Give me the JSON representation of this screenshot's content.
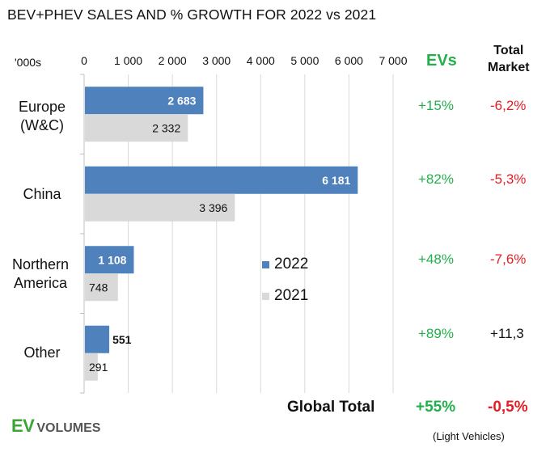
{
  "chart_data": {
    "type": "bar",
    "orientation": "horizontal",
    "title": "BEV+PHEV SALES AND % GROWTH FOR 2022 vs 2021",
    "units_label": "'000s",
    "xlabel": "",
    "ylabel": "",
    "xlim": [
      0,
      7000
    ],
    "xticks": [
      0,
      1000,
      2000,
      3000,
      4000,
      5000,
      6000,
      7000
    ],
    "xtick_labels": [
      "0",
      "1 000",
      "2 000",
      "3 000",
      "4 000",
      "5 000",
      "6 000",
      "7 000"
    ],
    "grid": true,
    "categories": [
      "Europe (W&C)",
      "China",
      "Northern America",
      "Other"
    ],
    "category_lines": [
      [
        "Europe",
        "(W&C)"
      ],
      [
        "China"
      ],
      [
        "Northern",
        "America"
      ],
      [
        "Other"
      ]
    ],
    "series": [
      {
        "name": "2022",
        "color": "#4f81bd",
        "values": [
          2683,
          6181,
          1108,
          551
        ],
        "labels": [
          "2 683",
          "6 181",
          "1 108",
          "551"
        ]
      },
      {
        "name": "2021",
        "color": "#d9d9d9",
        "values": [
          2332,
          3396,
          748,
          291
        ],
        "labels": [
          "2 332",
          "3 396",
          "748",
          "291"
        ]
      }
    ],
    "legend": {
      "placement": "center",
      "entries": [
        "2022",
        "2021"
      ]
    },
    "growth_table": {
      "headers": {
        "evs": "EVs",
        "total_market": [
          "Total",
          "Market"
        ]
      },
      "rows": [
        {
          "region": "Europe (W&C)",
          "evs": "+15%",
          "total_market": "-6,2%",
          "total_color": "red"
        },
        {
          "region": "China",
          "evs": "+82%",
          "total_market": "-5,3%",
          "total_color": "red"
        },
        {
          "region": "Northern America",
          "evs": "+48%",
          "total_market": "-7,6%",
          "total_color": "red"
        },
        {
          "region": "Other",
          "evs": "+89%",
          "total_market": "+11,3",
          "total_color": "black"
        }
      ],
      "global": {
        "label": "Global Total",
        "evs": "+55%",
        "total_market": "-0,5%"
      }
    },
    "footnote": "(Light Vehicles)"
  },
  "colors": {
    "green": "#21b04b",
    "red": "#e31e24",
    "bar_2022": "#4f81bd",
    "bar_2021": "#d9d9d9"
  },
  "logo": {
    "ev": "EV",
    "volumes": "VOLUMES"
  }
}
